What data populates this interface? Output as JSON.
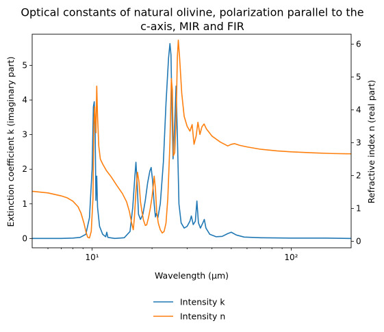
{
  "chart_data": {
    "type": "line",
    "title_lines": [
      "Optical constants of natural olivine, polarization parallel to the",
      "c-axis, MIR and FIR"
    ],
    "xlabel": "Wavelength (μm)",
    "ylabel_left": "Extinction coefficient k (imaginary part)",
    "ylabel_right": "Refractive index n (real part)",
    "xscale": "log",
    "xlim": [
      5,
      200
    ],
    "ylim_left": [
      -0.27,
      5.9
    ],
    "ylim_right": [
      -0.2,
      6.3
    ],
    "x_ticks": [
      {
        "value": 10,
        "label": "10¹"
      },
      {
        "value": 100,
        "label": "10²"
      }
    ],
    "y_ticks_left": [
      "0",
      "1",
      "2",
      "3",
      "4",
      "5"
    ],
    "y_ticks_right": [
      "0",
      "1",
      "2",
      "3",
      "4",
      "5",
      "6"
    ],
    "legend_position": "bottom-center",
    "series": [
      {
        "name": "Intensity k",
        "axis": "left",
        "color": "#1f77b4",
        "points": [
          [
            5,
            0.0
          ],
          [
            7,
            0.0
          ],
          [
            8,
            0.01
          ],
          [
            8.7,
            0.03
          ],
          [
            9.3,
            0.12
          ],
          [
            9.7,
            0.6
          ],
          [
            10.0,
            2.0
          ],
          [
            10.15,
            3.8
          ],
          [
            10.25,
            3.95
          ],
          [
            10.35,
            3.3
          ],
          [
            10.45,
            1.1
          ],
          [
            10.55,
            1.8
          ],
          [
            10.65,
            0.9
          ],
          [
            10.9,
            0.35
          ],
          [
            11.3,
            0.12
          ],
          [
            11.7,
            0.05
          ],
          [
            11.85,
            0.18
          ],
          [
            12.0,
            0.03
          ],
          [
            13.0,
            0.0
          ],
          [
            14.5,
            0.02
          ],
          [
            15.5,
            0.2
          ],
          [
            16.0,
            0.9
          ],
          [
            16.4,
            1.8
          ],
          [
            16.6,
            2.2
          ],
          [
            16.8,
            1.7
          ],
          [
            17.1,
            0.7
          ],
          [
            17.5,
            0.55
          ],
          [
            18.0,
            0.7
          ],
          [
            18.5,
            1.1
          ],
          [
            19.0,
            1.6
          ],
          [
            19.5,
            1.95
          ],
          [
            19.8,
            2.05
          ],
          [
            20.1,
            1.7
          ],
          [
            20.5,
            1.0
          ],
          [
            20.8,
            0.62
          ],
          [
            21.0,
            0.72
          ],
          [
            21.4,
            0.6
          ],
          [
            22.0,
            1.0
          ],
          [
            22.8,
            2.2
          ],
          [
            23.5,
            3.9
          ],
          [
            24.2,
            5.2
          ],
          [
            24.6,
            5.63
          ],
          [
            24.9,
            5.3
          ],
          [
            25.2,
            3.6
          ],
          [
            25.5,
            2.3
          ],
          [
            26.0,
            3.3
          ],
          [
            26.4,
            4.4
          ],
          [
            26.8,
            3.0
          ],
          [
            27.3,
            1.0
          ],
          [
            28.0,
            0.45
          ],
          [
            29.0,
            0.3
          ],
          [
            30.0,
            0.35
          ],
          [
            31.0,
            0.5
          ],
          [
            31.5,
            0.65
          ],
          [
            32.2,
            0.4
          ],
          [
            33.0,
            0.5
          ],
          [
            33.6,
            1.08
          ],
          [
            34.2,
            0.45
          ],
          [
            35.0,
            0.3
          ],
          [
            36.0,
            0.45
          ],
          [
            36.6,
            0.55
          ],
          [
            37.3,
            0.3
          ],
          [
            39.0,
            0.12
          ],
          [
            42.0,
            0.05
          ],
          [
            45.0,
            0.06
          ],
          [
            48.0,
            0.14
          ],
          [
            50.0,
            0.18
          ],
          [
            53.0,
            0.1
          ],
          [
            58.0,
            0.04
          ],
          [
            70.0,
            0.02
          ],
          [
            100.0,
            0.01
          ],
          [
            150.0,
            0.01
          ],
          [
            200.0,
            0.0
          ]
        ]
      },
      {
        "name": "Intensity n",
        "axis": "right",
        "color": "#ff7f0e",
        "points": [
          [
            5,
            1.52
          ],
          [
            6,
            1.47
          ],
          [
            7,
            1.38
          ],
          [
            7.5,
            1.32
          ],
          [
            8.0,
            1.22
          ],
          [
            8.5,
            1.05
          ],
          [
            8.8,
            0.85
          ],
          [
            9.1,
            0.55
          ],
          [
            9.3,
            0.3
          ],
          [
            9.5,
            0.12
          ],
          [
            9.7,
            0.1
          ],
          [
            9.9,
            0.3
          ],
          [
            10.1,
            1.3
          ],
          [
            10.2,
            3.5
          ],
          [
            10.3,
            4.1
          ],
          [
            10.38,
            3.6
          ],
          [
            10.45,
            3.3
          ],
          [
            10.55,
            4.72
          ],
          [
            10.65,
            3.8
          ],
          [
            10.8,
            2.9
          ],
          [
            11.0,
            2.5
          ],
          [
            11.3,
            2.35
          ],
          [
            11.8,
            2.15
          ],
          [
            12.5,
            1.95
          ],
          [
            13.3,
            1.7
          ],
          [
            14.2,
            1.45
          ],
          [
            14.9,
            1.2
          ],
          [
            15.4,
            0.9
          ],
          [
            15.8,
            0.55
          ],
          [
            16.1,
            0.35
          ],
          [
            16.3,
            0.7
          ],
          [
            16.6,
            1.5
          ],
          [
            16.9,
            2.1
          ],
          [
            17.2,
            1.8
          ],
          [
            17.5,
            1.2
          ],
          [
            17.8,
            0.9
          ],
          [
            18.1,
            0.65
          ],
          [
            18.5,
            0.48
          ],
          [
            18.8,
            0.5
          ],
          [
            19.2,
            0.72
          ],
          [
            19.6,
            1.0
          ],
          [
            20.0,
            1.35
          ],
          [
            20.3,
            1.7
          ],
          [
            20.5,
            1.98
          ],
          [
            20.8,
            1.6
          ],
          [
            21.1,
            0.9
          ],
          [
            21.5,
            0.55
          ],
          [
            22.0,
            0.35
          ],
          [
            22.5,
            0.25
          ],
          [
            23.0,
            0.3
          ],
          [
            23.5,
            0.55
          ],
          [
            24.0,
            1.3
          ],
          [
            24.6,
            3.0
          ],
          [
            25.0,
            4.95
          ],
          [
            25.3,
            4.6
          ],
          [
            25.6,
            2.6
          ],
          [
            26.0,
            2.7
          ],
          [
            26.4,
            3.6
          ],
          [
            26.8,
            5.6
          ],
          [
            27.1,
            6.12
          ],
          [
            27.5,
            5.6
          ],
          [
            28.2,
            4.5
          ],
          [
            29.0,
            3.8
          ],
          [
            30.0,
            3.5
          ],
          [
            31.0,
            3.35
          ],
          [
            31.8,
            3.55
          ],
          [
            32.5,
            2.95
          ],
          [
            33.3,
            3.2
          ],
          [
            34.0,
            3.62
          ],
          [
            34.8,
            3.25
          ],
          [
            35.6,
            3.48
          ],
          [
            36.5,
            3.57
          ],
          [
            37.5,
            3.42
          ],
          [
            40.0,
            3.2
          ],
          [
            44.0,
            3.02
          ],
          [
            48.0,
            2.9
          ],
          [
            50.0,
            2.95
          ],
          [
            52.0,
            2.97
          ],
          [
            55.0,
            2.92
          ],
          [
            60.0,
            2.87
          ],
          [
            70.0,
            2.8
          ],
          [
            85.0,
            2.75
          ],
          [
            100.0,
            2.72
          ],
          [
            130.0,
            2.69
          ],
          [
            160.0,
            2.67
          ],
          [
            200.0,
            2.66
          ]
        ]
      }
    ]
  }
}
